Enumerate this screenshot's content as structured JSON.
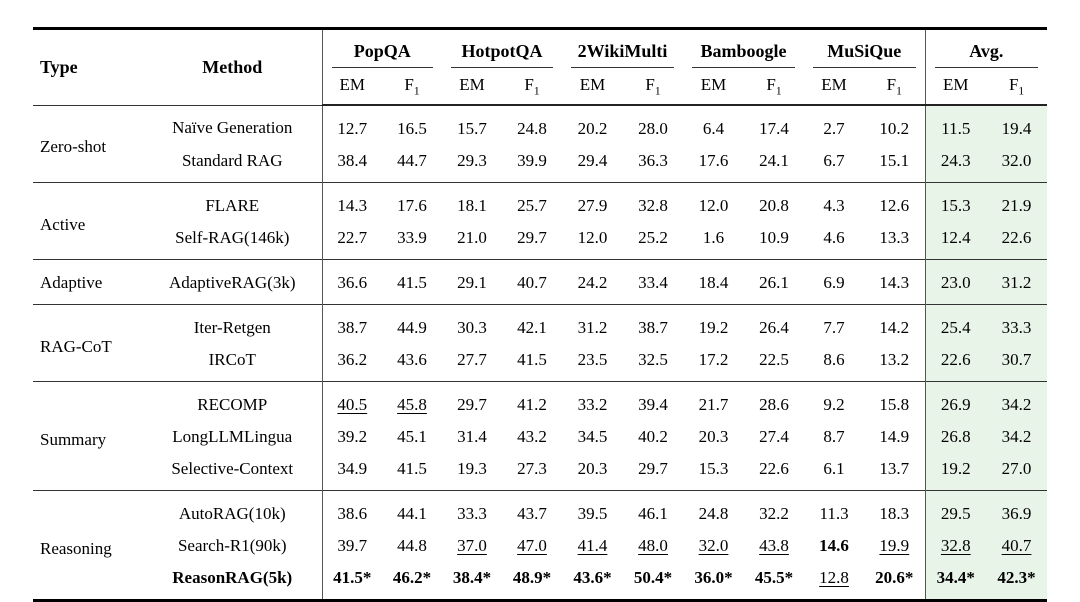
{
  "colors": {
    "avg_highlight": "#e8f4e8",
    "rule_heavy": "#000000",
    "rule_mid": "#333333",
    "vertical_rule": "#555555",
    "text": "#000000"
  },
  "table": {
    "headers": {
      "type": "Type",
      "method": "Method"
    },
    "subheader": {
      "em": "EM",
      "f": "F",
      "f_sub": "1"
    },
    "groups_header": [
      "PopQA",
      "HotpotQA",
      "2WikiMulti",
      "Bamboogle",
      "MuSiQue",
      "Avg."
    ],
    "row_groups": [
      {
        "type": "Zero-shot",
        "rows": [
          {
            "method": "Naïve Generation",
            "bold": false,
            "cells": [
              {
                "t": "12.7"
              },
              {
                "t": "16.5"
              },
              {
                "t": "15.7"
              },
              {
                "t": "24.8"
              },
              {
                "t": "20.2"
              },
              {
                "t": "28.0"
              },
              {
                "t": "6.4"
              },
              {
                "t": "17.4"
              },
              {
                "t": "2.7"
              },
              {
                "t": "10.2"
              },
              {
                "t": "11.5"
              },
              {
                "t": "19.4"
              }
            ]
          },
          {
            "method": "Standard RAG",
            "bold": false,
            "cells": [
              {
                "t": "38.4"
              },
              {
                "t": "44.7"
              },
              {
                "t": "29.3"
              },
              {
                "t": "39.9"
              },
              {
                "t": "29.4"
              },
              {
                "t": "36.3"
              },
              {
                "t": "17.6"
              },
              {
                "t": "24.1"
              },
              {
                "t": "6.7"
              },
              {
                "t": "15.1"
              },
              {
                "t": "24.3"
              },
              {
                "t": "32.0"
              }
            ]
          }
        ]
      },
      {
        "type": "Active",
        "rows": [
          {
            "method": "FLARE",
            "bold": false,
            "cells": [
              {
                "t": "14.3"
              },
              {
                "t": "17.6"
              },
              {
                "t": "18.1"
              },
              {
                "t": "25.7"
              },
              {
                "t": "27.9"
              },
              {
                "t": "32.8"
              },
              {
                "t": "12.0"
              },
              {
                "t": "20.8"
              },
              {
                "t": "4.3"
              },
              {
                "t": "12.6"
              },
              {
                "t": "15.3"
              },
              {
                "t": "21.9"
              }
            ]
          },
          {
            "method": "Self-RAG(146k)",
            "bold": false,
            "cells": [
              {
                "t": "22.7"
              },
              {
                "t": "33.9"
              },
              {
                "t": "21.0"
              },
              {
                "t": "29.7"
              },
              {
                "t": "12.0"
              },
              {
                "t": "25.2"
              },
              {
                "t": "1.6"
              },
              {
                "t": "10.9"
              },
              {
                "t": "4.6"
              },
              {
                "t": "13.3"
              },
              {
                "t": "12.4"
              },
              {
                "t": "22.6"
              }
            ]
          }
        ]
      },
      {
        "type": "Adaptive",
        "rows": [
          {
            "method": "AdaptiveRAG(3k)",
            "bold": false,
            "cells": [
              {
                "t": "36.6"
              },
              {
                "t": "41.5"
              },
              {
                "t": "29.1"
              },
              {
                "t": "40.7"
              },
              {
                "t": "24.2"
              },
              {
                "t": "33.4"
              },
              {
                "t": "18.4"
              },
              {
                "t": "26.1"
              },
              {
                "t": "6.9"
              },
              {
                "t": "14.3"
              },
              {
                "t": "23.0"
              },
              {
                "t": "31.2"
              }
            ]
          }
        ]
      },
      {
        "type": "RAG-CoT",
        "rows": [
          {
            "method": "Iter-Retgen",
            "bold": false,
            "cells": [
              {
                "t": "38.7"
              },
              {
                "t": "44.9"
              },
              {
                "t": "30.3"
              },
              {
                "t": "42.1"
              },
              {
                "t": "31.2"
              },
              {
                "t": "38.7"
              },
              {
                "t": "19.2"
              },
              {
                "t": "26.4"
              },
              {
                "t": "7.7"
              },
              {
                "t": "14.2"
              },
              {
                "t": "25.4"
              },
              {
                "t": "33.3"
              }
            ]
          },
          {
            "method": "IRCoT",
            "bold": false,
            "cells": [
              {
                "t": "36.2"
              },
              {
                "t": "43.6"
              },
              {
                "t": "27.7"
              },
              {
                "t": "41.5"
              },
              {
                "t": "23.5"
              },
              {
                "t": "32.5"
              },
              {
                "t": "17.2"
              },
              {
                "t": "22.5"
              },
              {
                "t": "8.6"
              },
              {
                "t": "13.2"
              },
              {
                "t": "22.6"
              },
              {
                "t": "30.7"
              }
            ]
          }
        ]
      },
      {
        "type": "Summary",
        "rows": [
          {
            "method": "RECOMP",
            "bold": false,
            "cells": [
              {
                "t": "40.5",
                "s": "u"
              },
              {
                "t": "45.8",
                "s": "u"
              },
              {
                "t": "29.7"
              },
              {
                "t": "41.2"
              },
              {
                "t": "33.2"
              },
              {
                "t": "39.4"
              },
              {
                "t": "21.7"
              },
              {
                "t": "28.6"
              },
              {
                "t": "9.2"
              },
              {
                "t": "15.8"
              },
              {
                "t": "26.9"
              },
              {
                "t": "34.2"
              }
            ]
          },
          {
            "method": "LongLLMLingua",
            "bold": false,
            "cells": [
              {
                "t": "39.2"
              },
              {
                "t": "45.1"
              },
              {
                "t": "31.4"
              },
              {
                "t": "43.2"
              },
              {
                "t": "34.5"
              },
              {
                "t": "40.2"
              },
              {
                "t": "20.3"
              },
              {
                "t": "27.4"
              },
              {
                "t": "8.7"
              },
              {
                "t": "14.9"
              },
              {
                "t": "26.8"
              },
              {
                "t": "34.2"
              }
            ]
          },
          {
            "method": "Selective-Context",
            "bold": false,
            "cells": [
              {
                "t": "34.9"
              },
              {
                "t": "41.5"
              },
              {
                "t": "19.3"
              },
              {
                "t": "27.3"
              },
              {
                "t": "20.3"
              },
              {
                "t": "29.7"
              },
              {
                "t": "15.3"
              },
              {
                "t": "22.6"
              },
              {
                "t": "6.1"
              },
              {
                "t": "13.7"
              },
              {
                "t": "19.2"
              },
              {
                "t": "27.0"
              }
            ]
          }
        ]
      },
      {
        "type": "Reasoning",
        "rows": [
          {
            "method": "AutoRAG(10k)",
            "bold": false,
            "cells": [
              {
                "t": "38.6"
              },
              {
                "t": "44.1"
              },
              {
                "t": "33.3"
              },
              {
                "t": "43.7"
              },
              {
                "t": "39.5"
              },
              {
                "t": "46.1"
              },
              {
                "t": "24.8"
              },
              {
                "t": "32.2"
              },
              {
                "t": "11.3"
              },
              {
                "t": "18.3"
              },
              {
                "t": "29.5"
              },
              {
                "t": "36.9"
              }
            ]
          },
          {
            "method": "Search-R1(90k)",
            "bold": false,
            "cells": [
              {
                "t": "39.7"
              },
              {
                "t": "44.8"
              },
              {
                "t": "37.0",
                "s": "u"
              },
              {
                "t": "47.0",
                "s": "u"
              },
              {
                "t": "41.4",
                "s": "u"
              },
              {
                "t": "48.0",
                "s": "u"
              },
              {
                "t": "32.0",
                "s": "u"
              },
              {
                "t": "43.8",
                "s": "u"
              },
              {
                "t": "14.6",
                "s": "b"
              },
              {
                "t": "19.9",
                "s": "u"
              },
              {
                "t": "32.8",
                "s": "u"
              },
              {
                "t": "40.7",
                "s": "u"
              }
            ]
          },
          {
            "method": "ReasonRAG(5k)",
            "bold": true,
            "cells": [
              {
                "t": "41.5*",
                "s": "b"
              },
              {
                "t": "46.2*",
                "s": "b"
              },
              {
                "t": "38.4*",
                "s": "b"
              },
              {
                "t": "48.9*",
                "s": "b"
              },
              {
                "t": "43.6*",
                "s": "b"
              },
              {
                "t": "50.4*",
                "s": "b"
              },
              {
                "t": "36.0*",
                "s": "b"
              },
              {
                "t": "45.5*",
                "s": "b"
              },
              {
                "t": "12.8",
                "s": "u"
              },
              {
                "t": "20.6*",
                "s": "b"
              },
              {
                "t": "34.4*",
                "s": "b"
              },
              {
                "t": "42.3*",
                "s": "b"
              }
            ]
          }
        ]
      }
    ]
  }
}
